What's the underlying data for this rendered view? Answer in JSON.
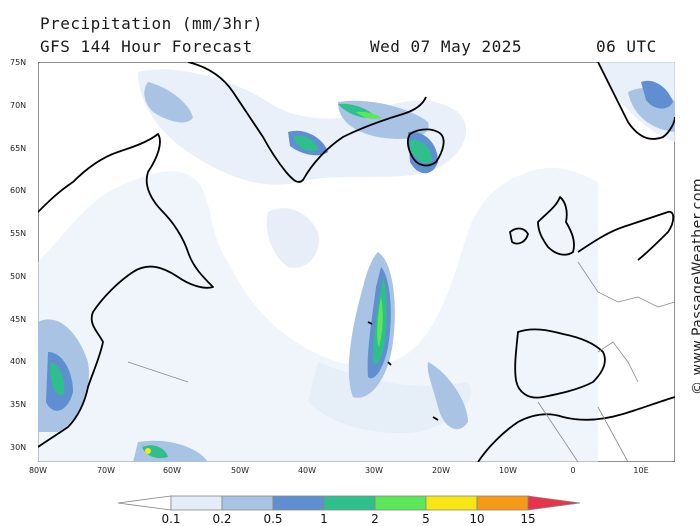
{
  "header": {
    "title": "Precipitation (mm/3hr)",
    "model": "GFS 144 Hour Forecast",
    "date": "Wed 07 May 2025",
    "time": "06 UTC"
  },
  "credit": "© www.PassageWeather.com",
  "lat_labels": [
    "75N",
    "70N",
    "65N",
    "60N",
    "55N",
    "50N",
    "45N",
    "40N",
    "35N",
    "30N"
  ],
  "lon_labels": [
    "80W",
    "70W",
    "60W",
    "50W",
    "40W",
    "30W",
    "20W",
    "10W",
    "0",
    "10E"
  ],
  "legend": {
    "ticks": [
      "0.1",
      "0.2",
      "0.5",
      "1",
      "2",
      "5",
      "10",
      "15"
    ],
    "colors": [
      "#ffffff",
      "#e4ecf7",
      "#a9c3e4",
      "#5f8fd0",
      "#2ebf8c",
      "#5ae75a",
      "#f5e614",
      "#f59a14",
      "#e8334a"
    ]
  },
  "chart_data": {
    "type": "heatmap",
    "title": "Precipitation (mm/3hr)",
    "subtitle": "GFS 144 Hour Forecast",
    "valid": "Wed 07 May 2025 06 UTC",
    "units": "mm/3hr",
    "lat_range": [
      28,
      75
    ],
    "lon_range": [
      -80,
      12
    ],
    "levels": [
      0.1,
      0.2,
      0.5,
      1,
      2,
      5,
      10,
      15
    ]
  }
}
